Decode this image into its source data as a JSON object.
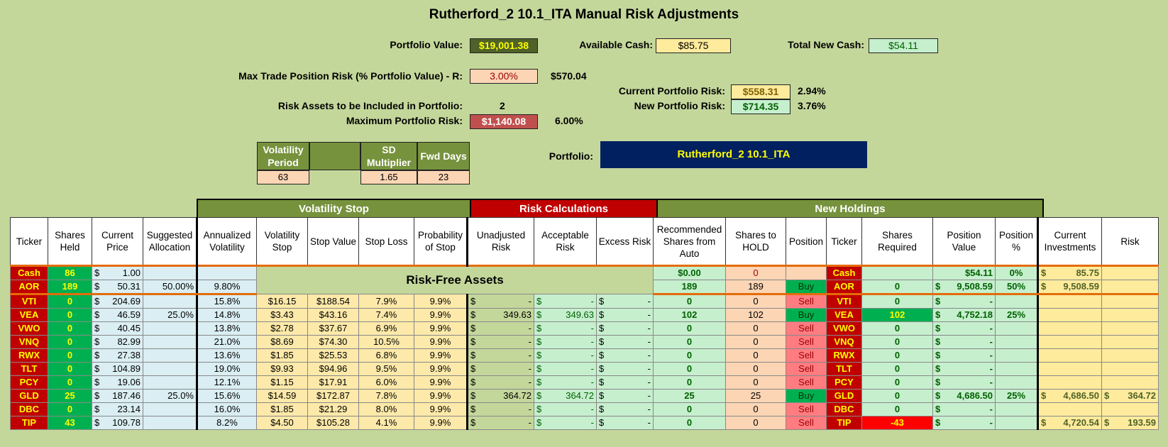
{
  "title": "Rutherford_2 10.1_ITA Manual Risk Adjustments",
  "summary": {
    "portfolio_value_label": "Portfolio Value:",
    "portfolio_value": "$19,001.38",
    "available_cash_label": "Available Cash:",
    "available_cash": "$85.75",
    "total_new_cash_label": "Total New Cash:",
    "total_new_cash": "$54.11",
    "max_trade_risk_label": "Max Trade Position Risk (% Portfolio Value) - R:",
    "max_trade_risk_pct": "3.00%",
    "max_trade_risk_value": "$570.04",
    "current_risk_label": "Current Portfolio Risk:",
    "current_risk_value": "$558.31",
    "current_risk_pct": "2.94%",
    "new_risk_label": "New Portfolio Risk:",
    "new_risk_value": "$714.35",
    "new_risk_pct": "3.76%",
    "risk_assets_label": "Risk Assets to be Included in Portfolio:",
    "risk_assets_count": "2",
    "max_portfolio_risk_label": "Maximum Portfolio Risk:",
    "max_portfolio_risk_value": "$1,140.08",
    "max_portfolio_risk_pct": "6.00%",
    "portfolio_label": "Portfolio:",
    "portfolio_name": "Rutherford_2 10.1_ITA"
  },
  "volatility_params": {
    "period_label": "Volatility Period",
    "period_value": "63",
    "sd_label": "SD Multiplier",
    "sd_value": "1.65",
    "fwd_label": "Fwd Days",
    "fwd_value": "23"
  },
  "groups": {
    "volatility_stop": "Volatility Stop",
    "risk_calculations": "Risk Calculations",
    "new_holdings": "New Holdings"
  },
  "columns": [
    "Ticker",
    "Shares Held",
    "Current Price",
    "Suggested Allocation",
    "Annualized Volatility",
    "Volatility Stop",
    "Stop Value",
    "Stop Loss",
    "Probability of Stop",
    "Unadjusted Risk",
    "Acceptable Risk",
    "Excess Risk",
    "Recommended Shares from Auto",
    "Shares to HOLD",
    "Position",
    "Ticker",
    "Shares Required",
    "Position Value",
    "Position %",
    "Current Investments",
    "Risk"
  ],
  "risk_free_label": "Risk-Free Assets",
  "cash_row": {
    "ticker": "Cash",
    "shares": "86",
    "price": "1.00",
    "rec": "$0.00",
    "hold": "0",
    "ticker2": "Cash",
    "pos_value": "$54.11",
    "pos_pct": "0%",
    "cur_inv": "85.75"
  },
  "aor_row": {
    "ticker": "AOR",
    "shares": "189",
    "price": "50.31",
    "alloc": "50.00%",
    "vol": "9.80%",
    "rec": "189",
    "hold": "189",
    "position": "Buy",
    "ticker2": "AOR",
    "req": "0",
    "pos_value": "9,508.59",
    "pos_pct": "50%",
    "cur_inv": "9,508.59"
  },
  "rows": [
    {
      "ticker": "VTI",
      "shares": "0",
      "price": "204.69",
      "alloc": "",
      "vol": "15.8%",
      "vstop": "$16.15",
      "sval": "$188.54",
      "sloss": "7.9%",
      "prob": "9.9%",
      "unadj": "-",
      "accept": "-",
      "excess": "-",
      "rec": "0",
      "hold": "0",
      "position": "Sell",
      "req": "0",
      "pos_value": "-",
      "pos_pct": "",
      "cur_inv": "",
      "risk": ""
    },
    {
      "ticker": "VEA",
      "shares": "0",
      "price": "46.59",
      "alloc": "25.0%",
      "vol": "14.8%",
      "vstop": "$3.43",
      "sval": "$43.16",
      "sloss": "7.4%",
      "prob": "9.9%",
      "unadj": "349.63",
      "accept": "349.63",
      "excess": "-",
      "rec": "102",
      "hold": "102",
      "position": "Buy",
      "req": "102",
      "pos_value": "4,752.18",
      "pos_pct": "25%",
      "cur_inv": "",
      "risk": ""
    },
    {
      "ticker": "VWO",
      "shares": "0",
      "price": "40.45",
      "alloc": "",
      "vol": "13.8%",
      "vstop": "$2.78",
      "sval": "$37.67",
      "sloss": "6.9%",
      "prob": "9.9%",
      "unadj": "-",
      "accept": "-",
      "excess": "-",
      "rec": "0",
      "hold": "0",
      "position": "Sell",
      "req": "0",
      "pos_value": "-",
      "pos_pct": "",
      "cur_inv": "",
      "risk": ""
    },
    {
      "ticker": "VNQ",
      "shares": "0",
      "price": "82.99",
      "alloc": "",
      "vol": "21.0%",
      "vstop": "$8.69",
      "sval": "$74.30",
      "sloss": "10.5%",
      "prob": "9.9%",
      "unadj": "-",
      "accept": "-",
      "excess": "-",
      "rec": "0",
      "hold": "0",
      "position": "Sell",
      "req": "0",
      "pos_value": "-",
      "pos_pct": "",
      "cur_inv": "",
      "risk": ""
    },
    {
      "ticker": "RWX",
      "shares": "0",
      "price": "27.38",
      "alloc": "",
      "vol": "13.6%",
      "vstop": "$1.85",
      "sval": "$25.53",
      "sloss": "6.8%",
      "prob": "9.9%",
      "unadj": "-",
      "accept": "-",
      "excess": "-",
      "rec": "0",
      "hold": "0",
      "position": "Sell",
      "req": "0",
      "pos_value": "-",
      "pos_pct": "",
      "cur_inv": "",
      "risk": ""
    },
    {
      "ticker": "TLT",
      "shares": "0",
      "price": "104.89",
      "alloc": "",
      "vol": "19.0%",
      "vstop": "$9.93",
      "sval": "$94.96",
      "sloss": "9.5%",
      "prob": "9.9%",
      "unadj": "-",
      "accept": "-",
      "excess": "-",
      "rec": "0",
      "hold": "0",
      "position": "Sell",
      "req": "0",
      "pos_value": "-",
      "pos_pct": "",
      "cur_inv": "",
      "risk": ""
    },
    {
      "ticker": "PCY",
      "shares": "0",
      "price": "19.06",
      "alloc": "",
      "vol": "12.1%",
      "vstop": "$1.15",
      "sval": "$17.91",
      "sloss": "6.0%",
      "prob": "9.9%",
      "unadj": "-",
      "accept": "-",
      "excess": "-",
      "rec": "0",
      "hold": "0",
      "position": "Sell",
      "req": "0",
      "pos_value": "-",
      "pos_pct": "",
      "cur_inv": "",
      "risk": ""
    },
    {
      "ticker": "GLD",
      "shares": "25",
      "price": "187.46",
      "alloc": "25.0%",
      "vol": "15.6%",
      "vstop": "$14.59",
      "sval": "$172.87",
      "sloss": "7.8%",
      "prob": "9.9%",
      "unadj": "364.72",
      "accept": "364.72",
      "excess": "-",
      "rec": "25",
      "hold": "25",
      "position": "Buy",
      "req": "0",
      "pos_value": "4,686.50",
      "pos_pct": "25%",
      "cur_inv": "4,686.50",
      "risk": "364.72"
    },
    {
      "ticker": "DBC",
      "shares": "0",
      "price": "23.14",
      "alloc": "",
      "vol": "16.0%",
      "vstop": "$1.85",
      "sval": "$21.29",
      "sloss": "8.0%",
      "prob": "9.9%",
      "unadj": "-",
      "accept": "-",
      "excess": "-",
      "rec": "0",
      "hold": "0",
      "position": "Sell",
      "req": "0",
      "pos_value": "-",
      "pos_pct": "",
      "cur_inv": "",
      "risk": ""
    },
    {
      "ticker": "TIP",
      "shares": "43",
      "price": "109.78",
      "alloc": "",
      "vol": "8.2%",
      "vstop": "$4.50",
      "sval": "$105.28",
      "sloss": "4.1%",
      "prob": "9.9%",
      "unadj": "-",
      "accept": "-",
      "excess": "-",
      "rec": "0",
      "hold": "0",
      "position": "Sell",
      "req": "-43",
      "pos_value": "-",
      "pos_pct": "",
      "cur_inv": "4,720.54",
      "risk": "193.59"
    }
  ]
}
